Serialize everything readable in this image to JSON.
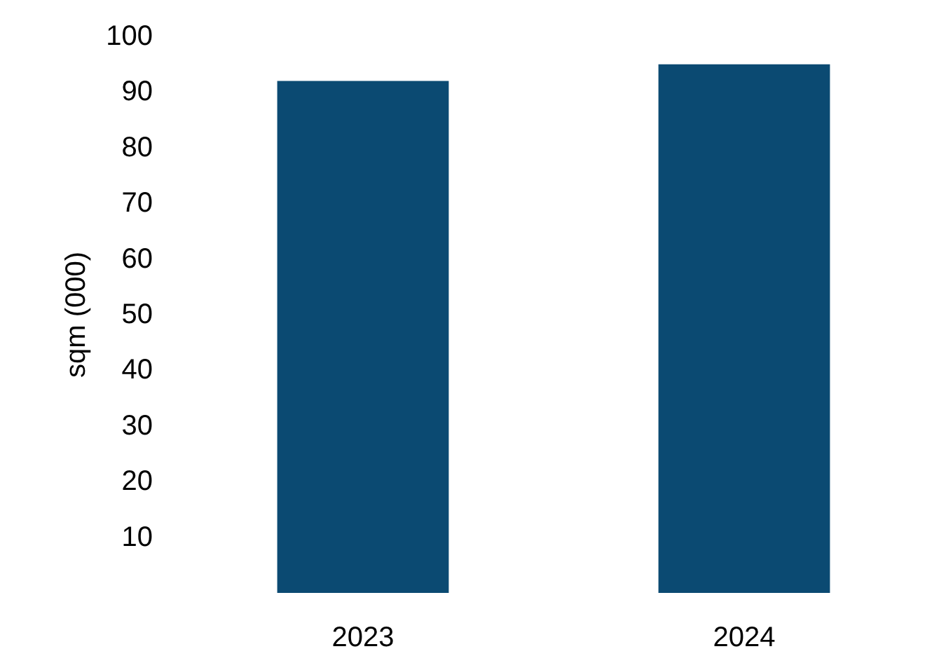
{
  "chart_data": {
    "type": "bar",
    "ylabel": "sqm (000)",
    "categories": [
      "2023",
      "2024"
    ],
    "series": [
      {
        "color": "#0b4a72",
        "values": [
          92,
          95
        ]
      }
    ],
    "ylim": [
      0,
      100
    ],
    "yticks": [
      10,
      20,
      30,
      40,
      50,
      60,
      70,
      80,
      90,
      100
    ],
    "grid": false
  }
}
